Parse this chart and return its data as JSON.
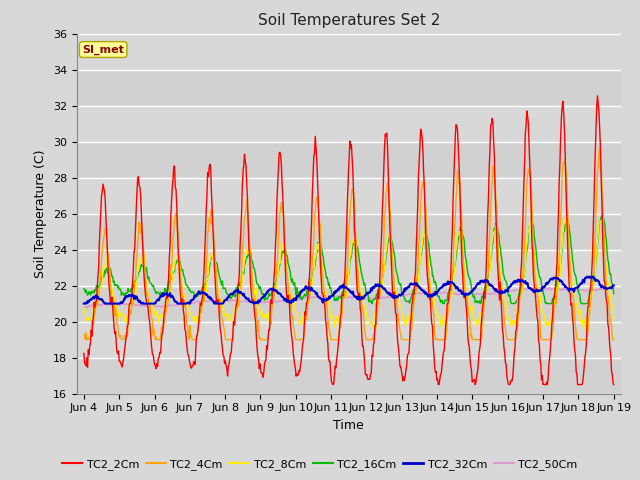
{
  "title": "Soil Temperatures Set 2",
  "xlabel": "Time",
  "ylabel": "Soil Temperature (C)",
  "ylim": [
    16,
    36
  ],
  "yticks": [
    16,
    18,
    20,
    22,
    24,
    26,
    28,
    30,
    32,
    34,
    36
  ],
  "fig_bg_color": "#d8d8d8",
  "plot_bg_color": "#d8d8d8",
  "annotation_text": "SI_met",
  "annotation_color": "#8b0000",
  "annotation_bg": "#ffff99",
  "series_colors": {
    "TC2_2Cm": "#ff0000",
    "TC2_4Cm": "#ffa500",
    "TC2_8Cm": "#ffee00",
    "TC2_16Cm": "#00bb00",
    "TC2_32Cm": "#0000cc",
    "TC2_50Cm": "#dd99cc"
  },
  "x_tick_labels": [
    "Jun 4",
    "Jun 5",
    "Jun 6",
    "Jun 7",
    "Jun 8",
    "Jun 9",
    "Jun 10",
    "Jun 11",
    "Jun 12",
    "Jun 13",
    "Jun 14",
    "Jun 15",
    "Jun 16",
    "Jun 17",
    "Jun 18",
    "Jun 19"
  ],
  "line_width": 1.0,
  "figsize": [
    6.4,
    4.8
  ],
  "dpi": 100
}
